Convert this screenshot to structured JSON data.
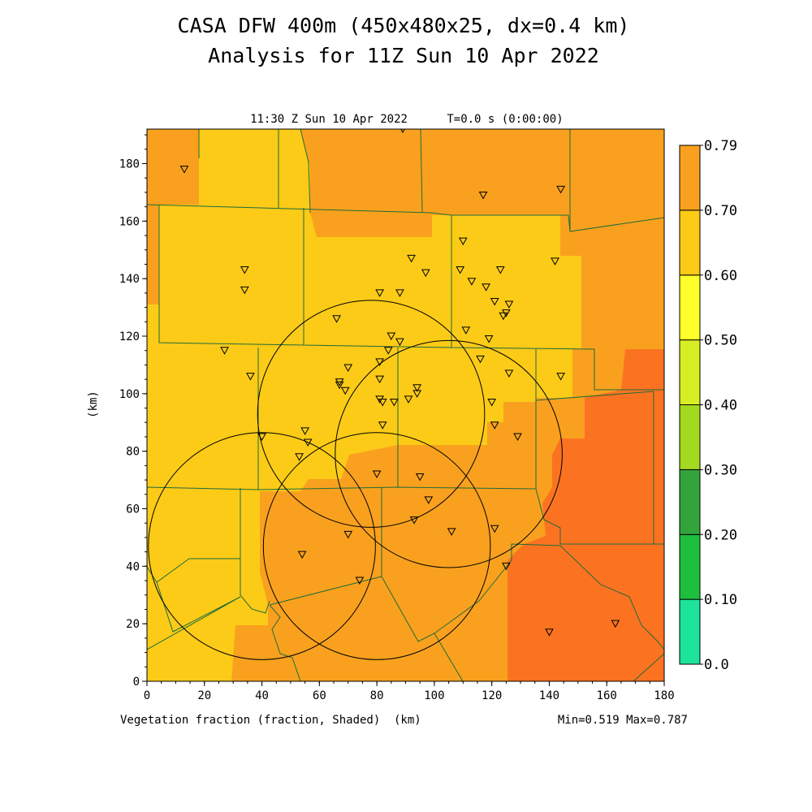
{
  "header": {
    "title": "CASA DFW 400m (450x480x25, dx=0.4 km)",
    "subtitle": "Analysis for 11Z Sun 10 Apr 2022",
    "plot_time": "11:30 Z Sun 10 Apr 2022",
    "plot_t": "T=0.0 s (0:00:00)"
  },
  "footer": {
    "field_label": "Vegetation fraction (fraction, Shaded)",
    "x_unit": "(km)",
    "stats": "Min=0.519 Max=0.787"
  },
  "colors": {
    "level_050_060": "#fccb17",
    "level_060_070": "#f9a11e",
    "level_070_079": "#fb7321",
    "county_lines": "#1f6b3a",
    "range_rings": "#000000"
  },
  "chart_data": {
    "type": "heatmap",
    "field": "Vegetation fraction",
    "units": "fraction",
    "xlabel": "(km)",
    "ylabel": "(km)",
    "xlim": [
      0,
      180
    ],
    "ylim": [
      0,
      192
    ],
    "x_ticks": [
      "0",
      "20",
      "40",
      "60",
      "80",
      "100",
      "120",
      "140",
      "160",
      "180"
    ],
    "y_ticks": [
      "0",
      "20",
      "40",
      "60",
      "80",
      "100",
      "120",
      "140",
      "160",
      "180"
    ],
    "min": 0.519,
    "max": 0.787,
    "colorbar": {
      "labels": [
        "0.0",
        "0.10",
        "0.20",
        "0.30",
        "0.40",
        "0.50",
        "0.60",
        "0.70",
        "0.79"
      ],
      "colors": [
        "#1ee39a",
        "#1dbf3c",
        "#33a43a",
        "#a3d91e",
        "#d8ee24",
        "#ffff2a",
        "#fccb17",
        "#f9a11e",
        "#fb7321"
      ]
    },
    "radar_rings_center_km": [
      [
        40,
        47
      ],
      [
        80,
        47
      ],
      [
        105,
        79
      ],
      [
        78,
        93
      ]
    ],
    "stations_km": [
      [
        13,
        178
      ],
      [
        34,
        143
      ],
      [
        34,
        136
      ],
      [
        27,
        115
      ],
      [
        36,
        106
      ],
      [
        117,
        169
      ],
      [
        144,
        171
      ],
      [
        142,
        146
      ],
      [
        110,
        153
      ],
      [
        109,
        143
      ],
      [
        113,
        139
      ],
      [
        118,
        137
      ],
      [
        123,
        143
      ],
      [
        121,
        132
      ],
      [
        126,
        131
      ],
      [
        125,
        128
      ],
      [
        124,
        127
      ],
      [
        111,
        122
      ],
      [
        119,
        119
      ],
      [
        92,
        147
      ],
      [
        97,
        142
      ],
      [
        88,
        135
      ],
      [
        81,
        135
      ],
      [
        66,
        126
      ],
      [
        85,
        120
      ],
      [
        88,
        118
      ],
      [
        84,
        115
      ],
      [
        81,
        111
      ],
      [
        70,
        109
      ],
      [
        67,
        104
      ],
      [
        67,
        103
      ],
      [
        69,
        101
      ],
      [
        81,
        105
      ],
      [
        94,
        102
      ],
      [
        94,
        100
      ],
      [
        91,
        98
      ],
      [
        86,
        97
      ],
      [
        81,
        98
      ],
      [
        82,
        97
      ],
      [
        82,
        89
      ],
      [
        116,
        112
      ],
      [
        126,
        107
      ],
      [
        120,
        97
      ],
      [
        121,
        89
      ],
      [
        129,
        85
      ],
      [
        144,
        106
      ],
      [
        55,
        87
      ],
      [
        56,
        83
      ],
      [
        40,
        85
      ],
      [
        53,
        78
      ],
      [
        80,
        72
      ],
      [
        95,
        71
      ],
      [
        98,
        63
      ],
      [
        93,
        56
      ],
      [
        106,
        52
      ],
      [
        121,
        53
      ],
      [
        70,
        51
      ],
      [
        54,
        44
      ],
      [
        74,
        35
      ],
      [
        125,
        40
      ],
      [
        140,
        17
      ],
      [
        163,
        20
      ],
      [
        89,
        192
      ]
    ]
  }
}
